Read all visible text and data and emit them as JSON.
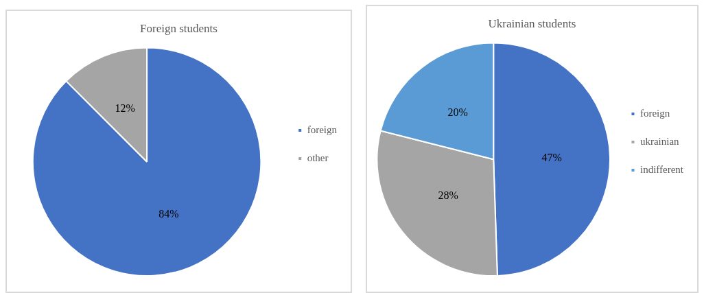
{
  "chart_data": [
    {
      "type": "pie",
      "title": "Foreign students",
      "categories": [
        "foreign",
        "other"
      ],
      "values": [
        84,
        12
      ],
      "colors": [
        "#4472c4",
        "#a5a5a5"
      ],
      "value_labels": [
        "84%",
        "12%"
      ],
      "legend": "right"
    },
    {
      "type": "pie",
      "title": "Ukrainian students",
      "categories": [
        "foreign",
        "ukrainian",
        "indifferent"
      ],
      "values": [
        47,
        28,
        20
      ],
      "colors": [
        "#4472c4",
        "#a5a5a5",
        "#5b9bd5"
      ],
      "value_labels": [
        "47%",
        "28%",
        "20%"
      ],
      "legend": "right"
    }
  ]
}
